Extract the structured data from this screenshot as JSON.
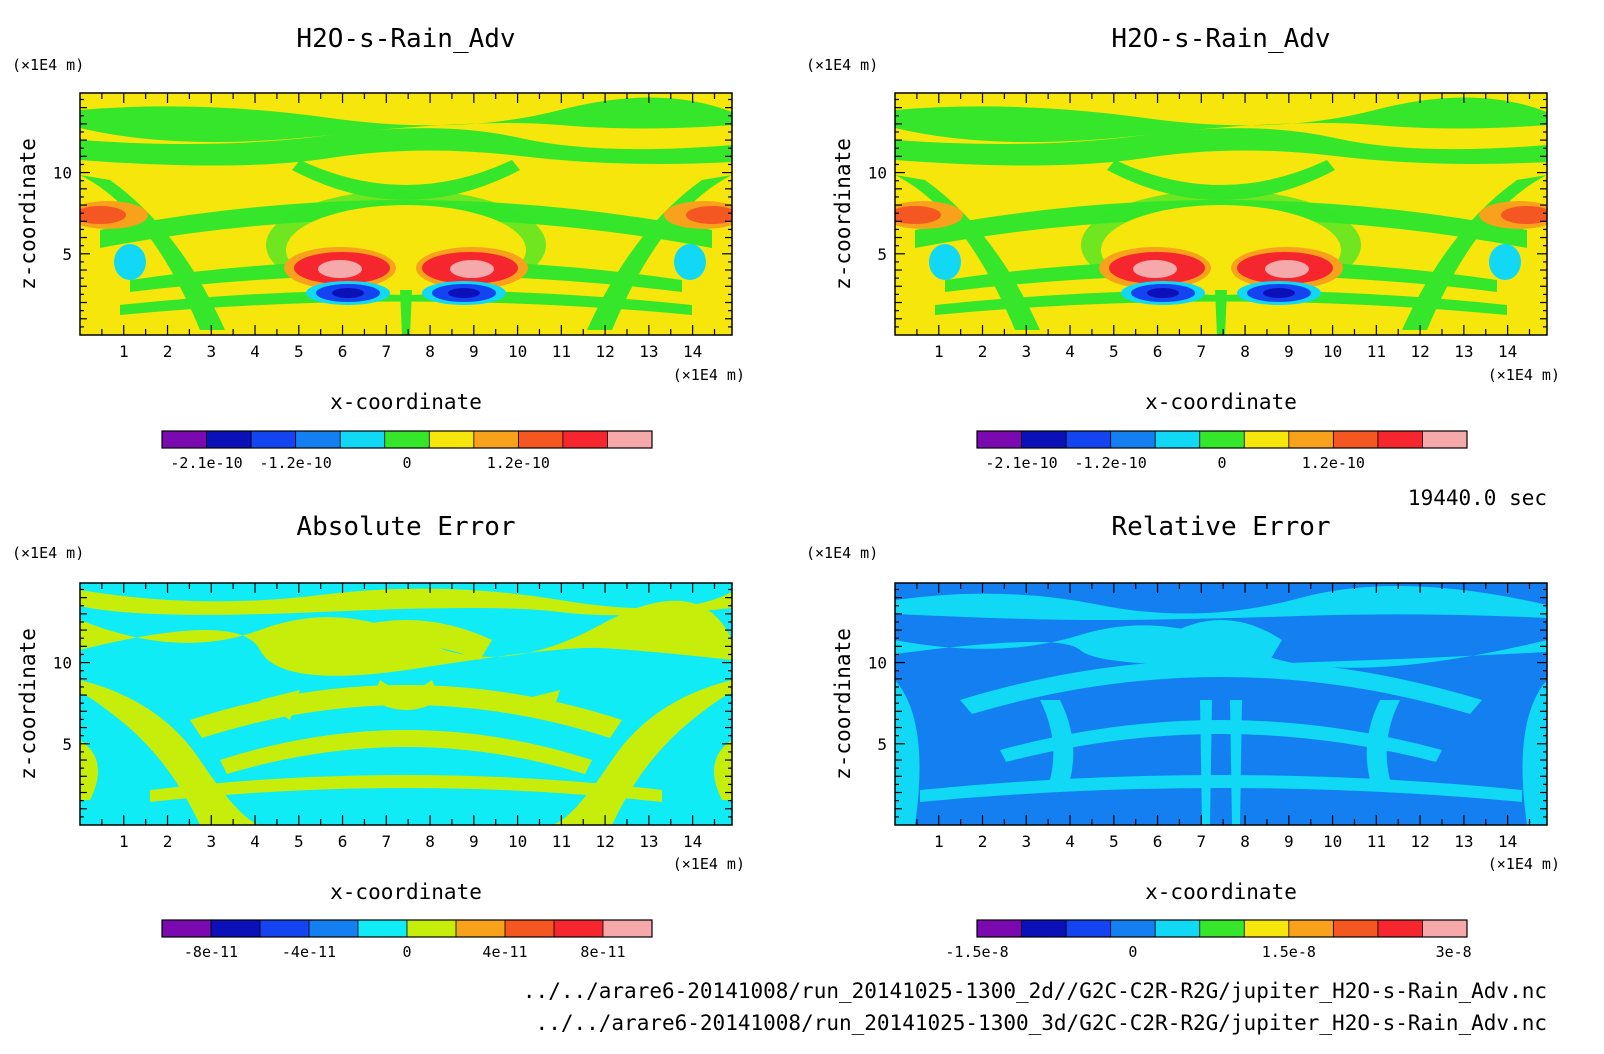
{
  "chart_data": [
    {
      "type": "heatmap",
      "title": "H2O-s-Rain_Adv",
      "xlabel": "x-coordinate",
      "ylabel": "z-coordinate",
      "x_unit": "(×1E4 m)",
      "y_unit": "(×1E4 m)",
      "x_ticks": [
        "1",
        "2",
        "3",
        "4",
        "5",
        "6",
        "7",
        "8",
        "9",
        "10",
        "11",
        "12",
        "13",
        "14"
      ],
      "y_ticks": [
        "5",
        "10"
      ],
      "xlim": [
        0,
        14.9
      ],
      "ylim": [
        0,
        14.9
      ],
      "colorbar": {
        "colors": [
          "#7a0ab0",
          "#0b10b8",
          "#1443f0",
          "#137ff0",
          "#10d8f5",
          "#35e62a",
          "#f7e60b",
          "#f7a21a",
          "#f55722",
          "#f5262e",
          "#f5a9aa"
        ],
        "tick_labels": [
          "-2.1e-10",
          "-1.2e-10",
          "0",
          "1.2e-10"
        ],
        "tick_positions": [
          1,
          3,
          5.5,
          8
        ]
      }
    },
    {
      "type": "heatmap",
      "title": "H2O-s-Rain_Adv",
      "xlabel": "x-coordinate",
      "ylabel": "z-coordinate",
      "x_unit": "(×1E4 m)",
      "y_unit": "(×1E4 m)",
      "x_ticks": [
        "1",
        "2",
        "3",
        "4",
        "5",
        "6",
        "7",
        "8",
        "9",
        "10",
        "11",
        "12",
        "13",
        "14"
      ],
      "y_ticks": [
        "5",
        "10"
      ],
      "xlim": [
        0,
        14.9
      ],
      "ylim": [
        0,
        14.9
      ],
      "colorbar": {
        "colors": [
          "#7a0ab0",
          "#0b10b8",
          "#1443f0",
          "#137ff0",
          "#10d8f5",
          "#35e62a",
          "#f7e60b",
          "#f7a21a",
          "#f55722",
          "#f5262e",
          "#f5a9aa"
        ],
        "tick_labels": [
          "-2.1e-10",
          "-1.2e-10",
          "0",
          "1.2e-10"
        ],
        "tick_positions": [
          1,
          3,
          5.5,
          8
        ]
      }
    },
    {
      "type": "heatmap",
      "title": "Absolute Error",
      "xlabel": "x-coordinate",
      "ylabel": "z-coordinate",
      "x_unit": "(×1E4 m)",
      "y_unit": "(×1E4 m)",
      "x_ticks": [
        "1",
        "2",
        "3",
        "4",
        "5",
        "6",
        "7",
        "8",
        "9",
        "10",
        "11",
        "12",
        "13",
        "14"
      ],
      "y_ticks": [
        "5",
        "10"
      ],
      "xlim": [
        0,
        14.9
      ],
      "ylim": [
        0,
        14.9
      ],
      "colorbar": {
        "colors": [
          "#7a0ab0",
          "#0b10b8",
          "#1443f0",
          "#137ff0",
          "#10ecf5",
          "#c6ee0a",
          "#f7a21a",
          "#f55722",
          "#f5262e",
          "#f5a9aa"
        ],
        "tick_labels": [
          "-8e-11",
          "-4e-11",
          "0",
          "4e-11",
          "8e-11"
        ],
        "tick_positions": [
          1,
          3,
          5,
          7,
          9
        ]
      }
    },
    {
      "type": "heatmap",
      "title": "Relative Error",
      "xlabel": "x-coordinate",
      "ylabel": "z-coordinate",
      "x_unit": "(×1E4 m)",
      "y_unit": "(×1E4 m)",
      "x_ticks": [
        "1",
        "2",
        "3",
        "4",
        "5",
        "6",
        "7",
        "8",
        "9",
        "10",
        "11",
        "12",
        "13",
        "14"
      ],
      "y_ticks": [
        "5",
        "10"
      ],
      "xlim": [
        0,
        14.9
      ],
      "ylim": [
        0,
        14.9
      ],
      "colorbar": {
        "colors": [
          "#7a0ab0",
          "#0b10b8",
          "#1443f0",
          "#137ff0",
          "#10d8f5",
          "#35e62a",
          "#f7e60b",
          "#f7a21a",
          "#f55722",
          "#f5262e",
          "#f5a9aa"
        ],
        "tick_labels": [
          "-1.5e-8",
          "0",
          "1.5e-8",
          "3e-8"
        ],
        "tick_positions": [
          0,
          3.5,
          7,
          10.7
        ]
      }
    }
  ],
  "time_label": "19440.0 sec",
  "file_paths": [
    "../../arare6-20141008/run_20141025-1300_2d//G2C-C2R-R2G/jupiter_H2O-s-Rain_Adv.nc",
    "../../arare6-20141008/run_20141025-1300_3d/G2C-C2R-R2G/jupiter_H2O-s-Rain_Adv.nc"
  ]
}
